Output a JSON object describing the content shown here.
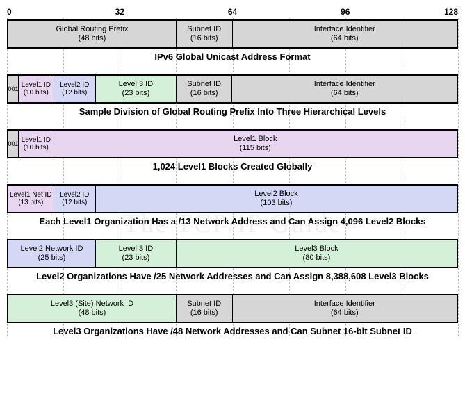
{
  "ruler": {
    "labels": [
      "0",
      "32",
      "64",
      "96",
      "128"
    ],
    "positions_pct": [
      0,
      25,
      50,
      75,
      100
    ]
  },
  "grid": {
    "positions_pct": [
      0,
      12.5,
      25,
      37.5,
      50,
      62.5,
      75,
      87.5,
      100
    ],
    "color": "#bfbfbf"
  },
  "colors": {
    "gray": "#d6d6d6",
    "purple": "#e8d5f0",
    "blue": "#d5d8f5",
    "green": "#d5f0d8",
    "border": "#000000",
    "text": "#000000",
    "bg": "#ffffff"
  },
  "watermark": "The TCP/IP Guide",
  "bars": [
    {
      "caption": "IPv6 Global Unicast Address Format",
      "segments": [
        {
          "label": "Global Routing Prefix",
          "bits": "(48 bits)",
          "width_bits": 48,
          "color": "gray"
        },
        {
          "label": "Subnet ID",
          "bits": "(16 bits)",
          "width_bits": 16,
          "color": "gray"
        },
        {
          "label": "Interface Identifier",
          "bits": "(64 bits)",
          "width_bits": 64,
          "color": "gray"
        }
      ]
    },
    {
      "caption": "Sample Division of Global Routing Prefix Into Three Hierarchical Levels",
      "segments": [
        {
          "label": "001",
          "bits": "",
          "width_bits": 3,
          "color": "gray"
        },
        {
          "label": "Level1 ID",
          "bits": "(10 bits)",
          "width_bits": 10,
          "color": "purple"
        },
        {
          "label": "Level2 ID",
          "bits": "(12 bits)",
          "width_bits": 12,
          "color": "blue"
        },
        {
          "label": "Level 3 ID",
          "bits": "(23 bits)",
          "width_bits": 23,
          "color": "green"
        },
        {
          "label": "Subnet ID",
          "bits": "(16 bits)",
          "width_bits": 16,
          "color": "gray"
        },
        {
          "label": "Interface Identifier",
          "bits": "(64 bits)",
          "width_bits": 64,
          "color": "gray"
        }
      ]
    },
    {
      "caption": "1,024 Level1 Blocks Created Globally",
      "segments": [
        {
          "label": "001",
          "bits": "",
          "width_bits": 3,
          "color": "gray"
        },
        {
          "label": "Level1 ID",
          "bits": "(10 bits)",
          "width_bits": 10,
          "color": "purple"
        },
        {
          "label": "Level1 Block",
          "bits": "(115 bits)",
          "width_bits": 115,
          "color": "purple"
        }
      ]
    },
    {
      "caption": "Each Level1 Organization Has a /13 Network Address and Can Assign 4,096 Level2 Blocks",
      "segments": [
        {
          "label": "Level1 Net ID",
          "bits": "(13 bits)",
          "width_bits": 13,
          "color": "purple"
        },
        {
          "label": "Level2 ID",
          "bits": "(12 bits)",
          "width_bits": 12,
          "color": "blue"
        },
        {
          "label": "Level2 Block",
          "bits": "(103 bits)",
          "width_bits": 103,
          "color": "blue"
        }
      ]
    },
    {
      "caption": "Level2 Organizations Have /25 Network Addresses and Can Assign 8,388,608 Level3 Blocks",
      "segments": [
        {
          "label": "Level2 Network ID",
          "bits": "(25 bits)",
          "width_bits": 25,
          "color": "blue"
        },
        {
          "label": "Level 3 ID",
          "bits": "(23 bits)",
          "width_bits": 23,
          "color": "green"
        },
        {
          "label": "Level3 Block",
          "bits": "(80 bits)",
          "width_bits": 80,
          "color": "green"
        }
      ]
    },
    {
      "caption": "Level3 Organizations Have /48 Network Addresses and Can Subnet 16-bit Subnet ID",
      "segments": [
        {
          "label": "Level3 (Site) Network ID",
          "bits": "(48 bits)",
          "width_bits": 48,
          "color": "green"
        },
        {
          "label": "Subnet ID",
          "bits": "(16 bits)",
          "width_bits": 16,
          "color": "gray"
        },
        {
          "label": "Interface Identifier",
          "bits": "(64 bits)",
          "width_bits": 64,
          "color": "gray"
        }
      ]
    }
  ]
}
